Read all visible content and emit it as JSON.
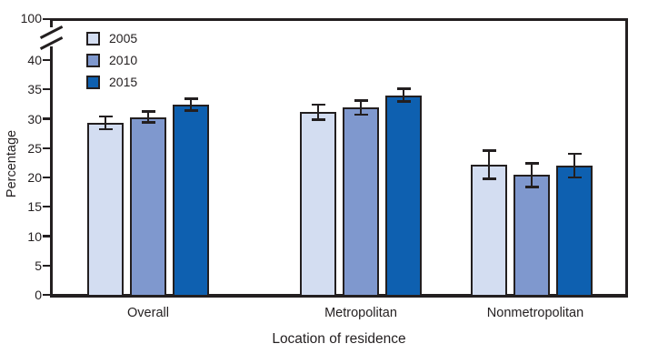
{
  "figure": {
    "kind": "grouped bar chart with error bars and broken y-axis",
    "background": "#ffffff"
  },
  "colors": {
    "axis": "#231f20",
    "text": "#231f20",
    "series_2005": "#d3ddf1",
    "series_2010": "#7f98ce",
    "series_2015": "#0e60b0"
  },
  "axes": {
    "x_title": "Location of residence",
    "y_title": "Percentage",
    "y_top_label_above_break": "100"
  },
  "legend": {
    "entries": [
      {
        "label": "2005",
        "color": "#d3ddf1"
      },
      {
        "label": "2010",
        "color": "#7f98ce"
      },
      {
        "label": "2015",
        "color": "#0e60b0"
      }
    ]
  },
  "chart_data": {
    "type": "bar",
    "title": "",
    "xlabel": "Location of residence",
    "ylabel": "Percentage",
    "categories": [
      "Overall",
      "Metropolitan",
      "Nonmetropolitan"
    ],
    "series": [
      {
        "name": "2005",
        "color": "#d3ddf1",
        "values": [
          29.3,
          31.1,
          22.2
        ],
        "error_margins": [
          1.1,
          1.3,
          2.4
        ]
      },
      {
        "name": "2010",
        "color": "#7f98ce",
        "values": [
          30.3,
          31.9,
          20.4
        ],
        "error_margins": [
          0.9,
          1.2,
          2.0
        ]
      },
      {
        "name": "2015",
        "color": "#0e60b0",
        "values": [
          32.4,
          34.0,
          22.0
        ],
        "error_margins": [
          1.0,
          1.1,
          2.0
        ]
      }
    ],
    "y_ticks": [
      0,
      5,
      10,
      15,
      20,
      25,
      30,
      35,
      40
    ],
    "ylim": [
      0,
      100
    ],
    "y_axis_break": {
      "present": true,
      "break_after": 40,
      "resumes_at": 100
    },
    "grid": false,
    "error_bars": true,
    "legend_position": "top-left-inside"
  }
}
